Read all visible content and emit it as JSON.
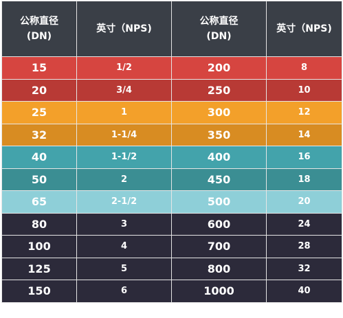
{
  "header": {
    "dn_label_line1": "公称直径",
    "dn_label_line2": "(DN)",
    "nps_label": "英寸（NPS)"
  },
  "rows": [
    {
      "dn1": "15",
      "nps1": "1/2",
      "dn2": "200",
      "nps2": "8",
      "color": "#d64540"
    },
    {
      "dn1": "20",
      "nps1": "3/4",
      "dn2": "250",
      "nps2": "10",
      "color": "#b83a35"
    },
    {
      "dn1": "25",
      "nps1": "1",
      "dn2": "300",
      "nps2": "12",
      "color": "#f3a02a"
    },
    {
      "dn1": "32",
      "nps1": "1-1/4",
      "dn2": "350",
      "nps2": "14",
      "color": "#d88c22"
    },
    {
      "dn1": "40",
      "nps1": "1-1/2",
      "dn2": "400",
      "nps2": "16",
      "color": "#43a3ab"
    },
    {
      "dn1": "50",
      "nps1": "2",
      "dn2": "450",
      "nps2": "18",
      "color": "#3b8e93"
    },
    {
      "dn1": "65",
      "nps1": "2-1/2",
      "dn2": "500",
      "nps2": "20",
      "color": "#8ecfd8"
    },
    {
      "dn1": "80",
      "nps1": "3",
      "dn2": "600",
      "nps2": "24",
      "color": "#2c2a3a"
    },
    {
      "dn1": "100",
      "nps1": "4",
      "dn2": "700",
      "nps2": "28",
      "color": "#2c2a3a"
    },
    {
      "dn1": "125",
      "nps1": "5",
      "dn2": "800",
      "nps2": "32",
      "color": "#2c2a3a"
    },
    {
      "dn1": "150",
      "nps1": "6",
      "dn2": "1000",
      "nps2": "40",
      "color": "#2c2a3a"
    }
  ]
}
